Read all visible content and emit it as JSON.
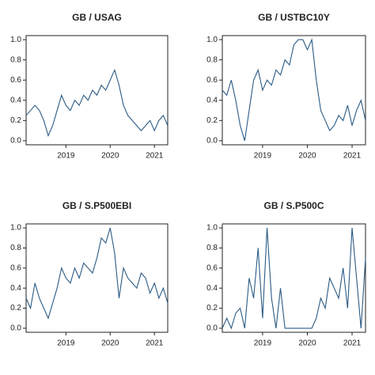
{
  "chart_data": [
    {
      "type": "line",
      "title": "GB / USAG",
      "x": [
        2018.1,
        2018.2,
        2018.3,
        2018.4,
        2018.5,
        2018.6,
        2018.7,
        2018.8,
        2018.9,
        2019.0,
        2019.1,
        2019.2,
        2019.3,
        2019.4,
        2019.5,
        2019.6,
        2019.7,
        2019.8,
        2019.9,
        2020.0,
        2020.1,
        2020.2,
        2020.3,
        2020.4,
        2020.5,
        2020.6,
        2020.7,
        2020.8,
        2020.9,
        2021.0,
        2021.1,
        2021.2,
        2021.3
      ],
      "series": [
        {
          "name": "GB / USAG",
          "color": "#2b5b84",
          "values": [
            0.25,
            0.3,
            0.35,
            0.3,
            0.2,
            0.05,
            0.15,
            0.3,
            0.45,
            0.35,
            0.3,
            0.4,
            0.35,
            0.45,
            0.4,
            0.5,
            0.45,
            0.55,
            0.5,
            0.6,
            0.7,
            0.55,
            0.35,
            0.25,
            0.2,
            0.15,
            0.1,
            0.15,
            0.2,
            0.1,
            0.2,
            0.25,
            0.15
          ]
        }
      ],
      "xlim": [
        2018.1,
        2021.3
      ],
      "xticks": [
        2019,
        2020,
        2021
      ],
      "ylim": [
        -0.04,
        1.04
      ],
      "yticks": [
        {
          "value": 0,
          "label": "0.0"
        },
        0.2,
        0.4,
        0.6,
        0.8,
        {
          "value": 1,
          "label": "1.0"
        }
      ]
    },
    {
      "type": "line",
      "title": "GB / USTBC10Y",
      "x": [
        2018.1,
        2018.2,
        2018.3,
        2018.4,
        2018.5,
        2018.6,
        2018.7,
        2018.8,
        2018.9,
        2019.0,
        2019.1,
        2019.2,
        2019.3,
        2019.4,
        2019.5,
        2019.6,
        2019.7,
        2019.8,
        2019.9,
        2020.0,
        2020.1,
        2020.2,
        2020.3,
        2020.4,
        2020.5,
        2020.6,
        2020.7,
        2020.8,
        2020.9,
        2021.0,
        2021.1,
        2021.2,
        2021.3
      ],
      "series": [
        {
          "name": "GB / USTBC10Y",
          "color": "#2b5b84",
          "values": [
            0.5,
            0.45,
            0.6,
            0.4,
            0.15,
            0.0,
            0.3,
            0.6,
            0.7,
            0.5,
            0.6,
            0.55,
            0.7,
            0.65,
            0.8,
            0.75,
            0.95,
            1.0,
            1.0,
            0.9,
            1.0,
            0.6,
            0.3,
            0.2,
            0.1,
            0.15,
            0.25,
            0.2,
            0.35,
            0.15,
            0.3,
            0.4,
            0.2
          ]
        }
      ],
      "xlim": [
        2018.1,
        2021.3
      ],
      "xticks": [
        2019,
        2020,
        2021
      ],
      "ylim": [
        -0.04,
        1.04
      ],
      "yticks": [
        {
          "value": 0,
          "label": "0.0"
        },
        0.2,
        0.4,
        0.6,
        0.8,
        {
          "value": 1,
          "label": "1.0"
        }
      ]
    },
    {
      "type": "line",
      "title": "GB / S.P500EBI",
      "x": [
        2018.1,
        2018.2,
        2018.3,
        2018.4,
        2018.5,
        2018.6,
        2018.7,
        2018.8,
        2018.9,
        2019.0,
        2019.1,
        2019.2,
        2019.3,
        2019.4,
        2019.5,
        2019.6,
        2019.7,
        2019.8,
        2019.9,
        2020.0,
        2020.1,
        2020.2,
        2020.3,
        2020.4,
        2020.5,
        2020.6,
        2020.7,
        2020.8,
        2020.9,
        2021.0,
        2021.1,
        2021.2,
        2021.3
      ],
      "series": [
        {
          "name": "GB / S.P500EBI",
          "color": "#2b5b84",
          "values": [
            0.3,
            0.2,
            0.45,
            0.3,
            0.2,
            0.1,
            0.25,
            0.4,
            0.6,
            0.5,
            0.45,
            0.6,
            0.5,
            0.65,
            0.6,
            0.55,
            0.7,
            0.9,
            0.85,
            1.0,
            0.75,
            0.3,
            0.6,
            0.5,
            0.45,
            0.4,
            0.55,
            0.5,
            0.35,
            0.45,
            0.3,
            0.4,
            0.25
          ]
        }
      ],
      "xlim": [
        2018.1,
        2021.3
      ],
      "xticks": [
        2019,
        2020,
        2021
      ],
      "ylim": [
        -0.04,
        1.04
      ],
      "yticks": [
        {
          "value": 0,
          "label": "0.0"
        },
        0.2,
        0.4,
        0.6,
        0.8,
        {
          "value": 1,
          "label": "1.0"
        }
      ]
    },
    {
      "type": "line",
      "title": "GB / S.P500C",
      "x": [
        2018.1,
        2018.2,
        2018.3,
        2018.4,
        2018.5,
        2018.6,
        2018.7,
        2018.8,
        2018.9,
        2019.0,
        2019.1,
        2019.2,
        2019.3,
        2019.4,
        2019.5,
        2019.6,
        2019.7,
        2019.8,
        2019.9,
        2020.0,
        2020.1,
        2020.2,
        2020.3,
        2020.4,
        2020.5,
        2020.6,
        2020.7,
        2020.8,
        2020.9,
        2021.0,
        2021.1,
        2021.2,
        2021.3
      ],
      "series": [
        {
          "name": "GB / S.P500C",
          "color": "#2b5b84",
          "values": [
            0.0,
            0.1,
            0.0,
            0.15,
            0.2,
            0.0,
            0.5,
            0.3,
            0.8,
            0.1,
            1.0,
            0.3,
            0.0,
            0.4,
            0.0,
            0.0,
            0.0,
            0.0,
            0.0,
            0.0,
            0.0,
            0.1,
            0.3,
            0.2,
            0.5,
            0.4,
            0.3,
            0.6,
            0.2,
            1.0,
            0.5,
            0.0,
            0.7
          ]
        }
      ],
      "xlim": [
        2018.1,
        2021.3
      ],
      "xticks": [
        2019,
        2020,
        2021
      ],
      "ylim": [
        -0.04,
        1.04
      ],
      "yticks": [
        {
          "value": 0,
          "label": "0.0"
        },
        0.2,
        0.4,
        0.6,
        0.8,
        {
          "value": 1,
          "label": "1.0"
        }
      ]
    }
  ]
}
